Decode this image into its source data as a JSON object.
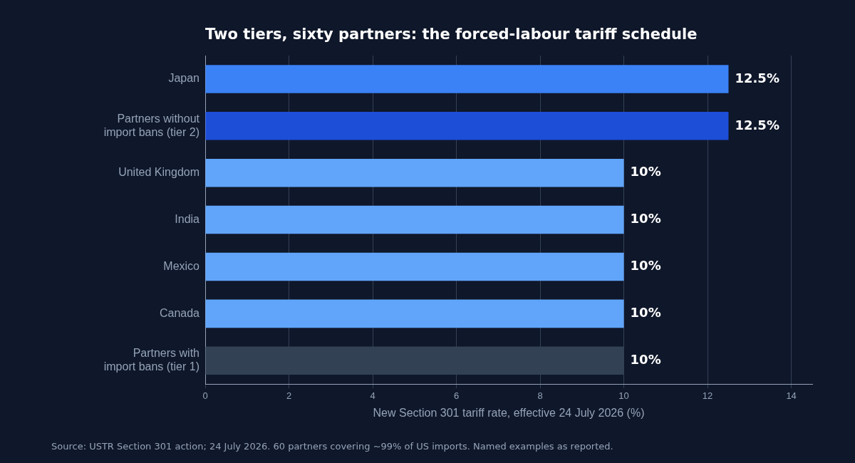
{
  "chart_data": {
    "type": "bar",
    "orientation": "horizontal",
    "title": "Two tiers, sixty partners: the forced-labour tariff schedule",
    "xlabel": "New Section 301 tariff rate, effective 24 July 2026 (%)",
    "categories": [
      "Japan",
      "Partners without import bans (tier 2)",
      "United Kingdom",
      "India",
      "Mexico",
      "Canada",
      "Partners with import bans (tier 1)"
    ],
    "values": [
      12.5,
      12.5,
      10,
      10,
      10,
      10,
      10
    ],
    "colors": [
      "#3b82f6",
      "#1d4ed8",
      "#60a5fa",
      "#60a5fa",
      "#60a5fa",
      "#60a5fa",
      "#334155"
    ],
    "value_labels": [
      "12.5%",
      "12.5%",
      "10%",
      "10%",
      "10%",
      "10%",
      "10%"
    ],
    "xlim": [
      0,
      14.5
    ],
    "xticks": [
      0,
      2,
      4,
      6,
      8,
      10,
      12,
      14
    ],
    "grid": "x",
    "legend": false,
    "annotations": [
      "Source: USTR Section 301 action; 24 July 2026. 60 partners covering ~99% of US imports. Named examples as reported."
    ]
  }
}
